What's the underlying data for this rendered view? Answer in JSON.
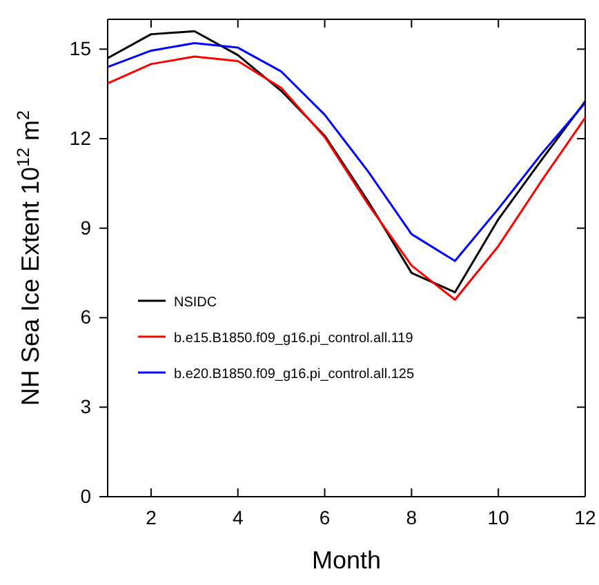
{
  "chart_data": {
    "type": "line",
    "xlabel": "Month",
    "ylabel": "NH Sea Ice Extent 10$^{12}$ m$^{2}$",
    "x": [
      1,
      2,
      3,
      4,
      5,
      6,
      7,
      8,
      9,
      10,
      11,
      12
    ],
    "series": [
      {
        "name": "NSIDC",
        "color": "#000000",
        "values": [
          14.7,
          15.5,
          15.6,
          14.8,
          13.6,
          12.1,
          9.9,
          7.5,
          6.85,
          9.3,
          11.3,
          13.25
        ]
      },
      {
        "name": "b.e15.B1850.f09_g16.pi_control.all.119",
        "color": "#ff0000",
        "values": [
          13.85,
          14.5,
          14.75,
          14.6,
          13.7,
          12.05,
          9.8,
          7.75,
          6.6,
          8.4,
          10.6,
          12.7
        ]
      },
      {
        "name": "b.e20.B1850.f09_g16.pi_control.all.125",
        "color": "#0000ff",
        "values": [
          14.4,
          14.95,
          15.2,
          15.05,
          14.25,
          12.8,
          10.9,
          8.8,
          7.9,
          9.65,
          11.5,
          13.2
        ]
      }
    ],
    "xlim": [
      1,
      12
    ],
    "xticks": [
      2,
      4,
      6,
      8,
      10,
      12
    ],
    "ylim": [
      0,
      16
    ],
    "yticks": [
      0,
      3,
      6,
      9,
      12,
      15
    ],
    "legend": "bottom left",
    "grid": false,
    "line_style": "solid",
    "marker": "none"
  }
}
